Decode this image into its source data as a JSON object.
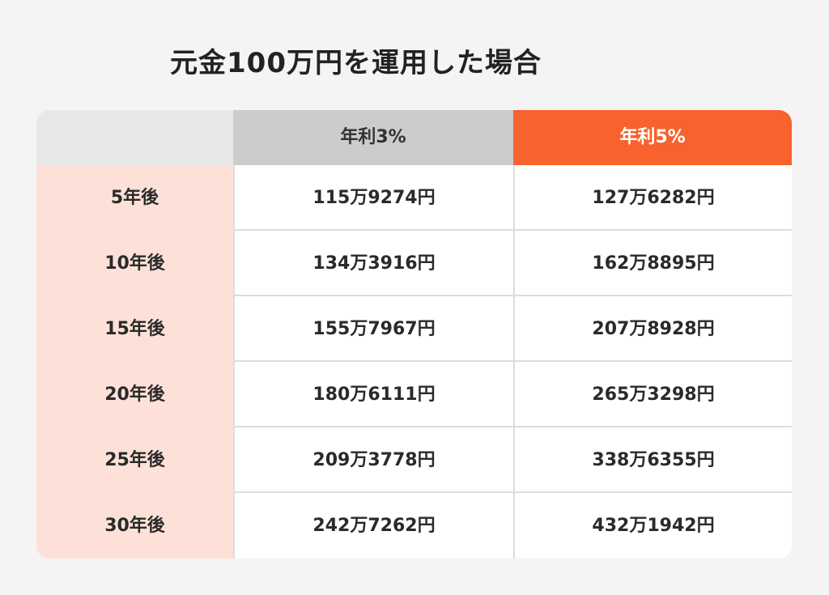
{
  "title": "元金100万円を運用した場合",
  "colors": {
    "accent": "#f7622d",
    "header_gray": "#cccccc",
    "corner": "#e8e8e8",
    "row_label_bg": "#fde1d8",
    "page_bg": "#f4f4f4"
  },
  "chart_data": {
    "type": "table",
    "title": "元金100万円を運用した場合",
    "columns": [
      "",
      "年利3%",
      "年利5%"
    ],
    "rows": [
      {
        "label": "5年後",
        "values": [
          "115万9274円",
          "127万6282円"
        ]
      },
      {
        "label": "10年後",
        "values": [
          "134万3916円",
          "162万8895円"
        ]
      },
      {
        "label": "15年後",
        "values": [
          "155万7967円",
          "207万8928円"
        ]
      },
      {
        "label": "20年後",
        "values": [
          "180万6111円",
          "265万3298円"
        ]
      },
      {
        "label": "25年後",
        "values": [
          "209万3778円",
          "338万6355円"
        ]
      },
      {
        "label": "30年後",
        "values": [
          "242万7262円",
          "432万1942円"
        ]
      }
    ]
  }
}
